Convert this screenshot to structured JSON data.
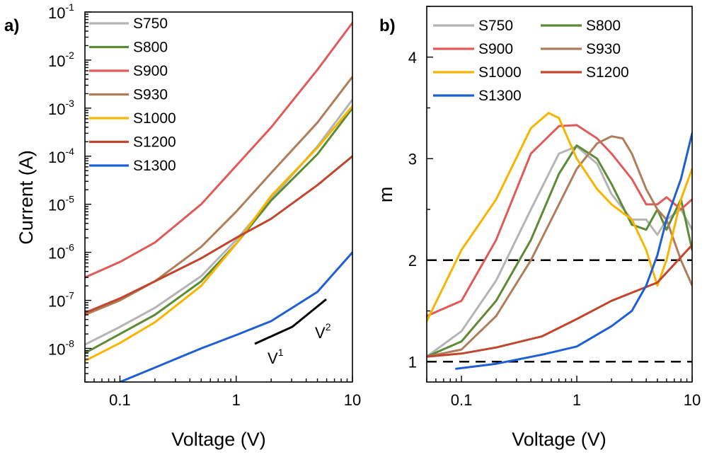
{
  "chart_data": [
    {
      "panel_label": "a)",
      "type": "line",
      "xlabel": "Voltage (V)",
      "ylabel": "Current (A)",
      "xscale": "log",
      "yscale": "log",
      "xlim": [
        0.05,
        10
      ],
      "ylim": [
        2e-09,
        0.1
      ],
      "x_ticks": [
        {
          "label": "0.1",
          "value": 0.1
        },
        {
          "label": "1",
          "value": 1
        },
        {
          "label": "10",
          "value": 10
        }
      ],
      "y_ticks": [
        {
          "base": "10",
          "exp": "-8",
          "value": 1e-08
        },
        {
          "base": "10",
          "exp": "-7",
          "value": 1e-07
        },
        {
          "base": "10",
          "exp": "-6",
          "value": 1e-06
        },
        {
          "base": "10",
          "exp": "-5",
          "value": 1e-05
        },
        {
          "base": "10",
          "exp": "-4",
          "value": 0.0001
        },
        {
          "base": "10",
          "exp": "-3",
          "value": 0.001
        },
        {
          "base": "10",
          "exp": "-2",
          "value": 0.01
        },
        {
          "base": "10",
          "exp": "-1",
          "value": 0.1
        }
      ],
      "legend_position": "top-left",
      "grid": false,
      "annotations": [
        {
          "base": "V",
          "exp": "1"
        },
        {
          "base": "V",
          "exp": "2"
        }
      ],
      "series": [
        {
          "name": "S750",
          "color": "#b4b4b4",
          "x": [
            0.05,
            0.1,
            0.2,
            0.5,
            1,
            2,
            5,
            10
          ],
          "y": [
            1.2e-08,
            2.8e-08,
            7e-08,
            3.2e-07,
            1.8e-06,
            1.3e-05,
            0.00016,
            0.0015
          ]
        },
        {
          "name": "S800",
          "color": "#5d8a35",
          "x": [
            0.05,
            0.1,
            0.2,
            0.5,
            1,
            2,
            5,
            10
          ],
          "y": [
            8e-09,
            2e-08,
            5e-08,
            2.5e-07,
            1.5e-06,
            1.2e-05,
            0.00011,
            0.001
          ]
        },
        {
          "name": "S900",
          "color": "#e05a5a",
          "x": [
            0.05,
            0.1,
            0.2,
            0.5,
            1,
            2,
            5,
            10
          ],
          "y": [
            3e-07,
            6.3e-07,
            1.6e-06,
            1e-05,
            6.3e-05,
            0.0004,
            0.0063,
            0.06
          ]
        },
        {
          "name": "S930",
          "color": "#b07d5a",
          "x": [
            0.05,
            0.1,
            0.2,
            0.5,
            1,
            2,
            5,
            10
          ],
          "y": [
            5e-08,
            1e-07,
            2.5e-07,
            1.3e-06,
            7e-06,
            4.5e-05,
            0.0005,
            0.0045
          ]
        },
        {
          "name": "S1000",
          "color": "#f7b500",
          "x": [
            0.05,
            0.1,
            0.2,
            0.5,
            1,
            2,
            5,
            10
          ],
          "y": [
            5.5e-09,
            1.3e-08,
            3.5e-08,
            2e-07,
            1.5e-06,
            1.5e-05,
            0.00015,
            0.0011
          ]
        },
        {
          "name": "S1200",
          "color": "#c0462d",
          "x": [
            0.05,
            0.1,
            0.2,
            0.5,
            1,
            2,
            5,
            10
          ],
          "y": [
            5.5e-08,
            1.1e-07,
            2.5e-07,
            7.5e-07,
            2e-06,
            5e-06,
            2.5e-05,
            0.0001
          ]
        },
        {
          "name": "S1300",
          "color": "#1f5fd6",
          "x": [
            0.1,
            0.2,
            0.5,
            1,
            2,
            5,
            10
          ],
          "y": [
            2e-09,
            4e-09,
            1e-08,
            1.9e-08,
            3.7e-08,
            1.5e-07,
            1e-06
          ]
        }
      ]
    },
    {
      "panel_label": "b)",
      "type": "line",
      "xlabel": "Voltage (V)",
      "ylabel": "m",
      "xscale": "log",
      "yscale": "linear",
      "xlim": [
        0.05,
        10
      ],
      "ylim": [
        0.8,
        4.5
      ],
      "x_ticks": [
        {
          "label": "0.1",
          "value": 0.1
        },
        {
          "label": "1",
          "value": 1
        },
        {
          "label": "10",
          "value": 10
        }
      ],
      "y_ticks": [
        {
          "label": "1",
          "value": 1
        },
        {
          "label": "2",
          "value": 2
        },
        {
          "label": "3",
          "value": 3
        },
        {
          "label": "4",
          "value": 4
        }
      ],
      "reference_lines": [
        1,
        2
      ],
      "legend_position": "top",
      "grid": false,
      "series": [
        {
          "name": "S750",
          "color": "#b4b4b4",
          "x": [
            0.05,
            0.1,
            0.2,
            0.4,
            0.7,
            1,
            1.5,
            2,
            3,
            4,
            5,
            6,
            8,
            10
          ],
          "y": [
            1.05,
            1.3,
            1.8,
            2.5,
            3.05,
            3.12,
            2.95,
            2.65,
            2.4,
            2.4,
            2.25,
            2.4,
            2.5,
            2.3
          ]
        },
        {
          "name": "S800",
          "color": "#5d8a35",
          "x": [
            0.05,
            0.1,
            0.2,
            0.4,
            0.7,
            1,
            1.5,
            2,
            3,
            4,
            5,
            6,
            8,
            10
          ],
          "y": [
            1.05,
            1.2,
            1.6,
            2.2,
            2.85,
            3.13,
            3.0,
            2.75,
            2.35,
            2.3,
            2.5,
            2.3,
            2.6,
            2.1
          ]
        },
        {
          "name": "S900",
          "color": "#e05a5a",
          "x": [
            0.05,
            0.1,
            0.2,
            0.4,
            0.7,
            1,
            1.5,
            2,
            3,
            4,
            5,
            6,
            8,
            10
          ],
          "y": [
            1.45,
            1.6,
            2.2,
            3.05,
            3.32,
            3.33,
            3.2,
            3.05,
            2.8,
            2.55,
            2.55,
            2.62,
            2.5,
            2.6
          ]
        },
        {
          "name": "S930",
          "color": "#b07d5a",
          "x": [
            0.05,
            0.1,
            0.2,
            0.4,
            0.7,
            1,
            1.5,
            2,
            2.5,
            3,
            4,
            5,
            6,
            8,
            10
          ],
          "y": [
            1.05,
            1.12,
            1.45,
            2.0,
            2.55,
            2.9,
            3.15,
            3.22,
            3.2,
            3.05,
            2.7,
            2.5,
            2.4,
            2.0,
            1.75
          ]
        },
        {
          "name": "S1000",
          "color": "#f7b500",
          "x": [
            0.05,
            0.1,
            0.2,
            0.4,
            0.57,
            0.7,
            1,
            1.5,
            2,
            3,
            4,
            5,
            6,
            8,
            10
          ],
          "y": [
            1.4,
            2.1,
            2.6,
            3.3,
            3.45,
            3.4,
            3.0,
            2.7,
            2.55,
            2.4,
            2.1,
            1.75,
            2.0,
            2.6,
            2.9
          ]
        },
        {
          "name": "S1200",
          "color": "#c0462d",
          "x": [
            0.05,
            0.1,
            0.2,
            0.5,
            1,
            2,
            5,
            10
          ],
          "y": [
            1.05,
            1.08,
            1.14,
            1.25,
            1.42,
            1.6,
            1.78,
            2.15
          ]
        },
        {
          "name": "S1300",
          "color": "#1f5fd6",
          "x": [
            0.09,
            0.2,
            0.5,
            1,
            2,
            3,
            4,
            5,
            6,
            8,
            10
          ],
          "y": [
            0.93,
            0.98,
            1.07,
            1.15,
            1.35,
            1.5,
            1.75,
            2.05,
            2.4,
            2.8,
            3.25
          ]
        }
      ]
    }
  ]
}
